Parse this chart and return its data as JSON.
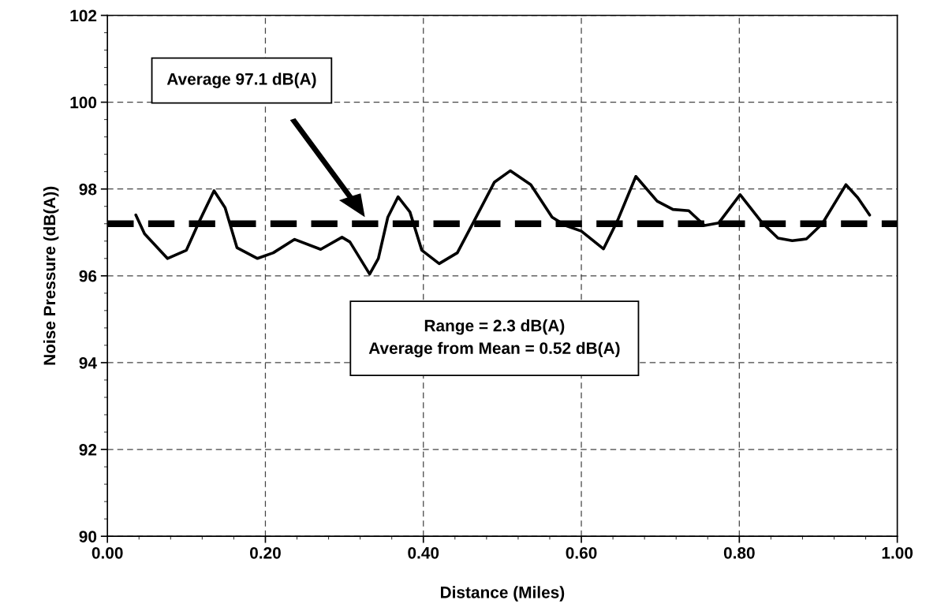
{
  "chart_data": {
    "type": "line",
    "xlabel": "Distance (Miles)",
    "ylabel": "Noise Pressure (dB(A))",
    "xlim": [
      0,
      1
    ],
    "ylim": [
      90,
      102
    ],
    "xticks": [
      {
        "value": 0,
        "label": "0.00"
      },
      {
        "value": 0.2,
        "label": "0.20"
      },
      {
        "value": 0.4,
        "label": "0.40"
      },
      {
        "value": 0.6,
        "label": "0.60"
      },
      {
        "value": 0.8,
        "label": "0.80"
      },
      {
        "value": 1,
        "label": "1.00"
      }
    ],
    "yticks": [
      90,
      92,
      94,
      96,
      98,
      100,
      102
    ],
    "grid": true,
    "line_style": "solid",
    "marker": "none",
    "series": [
      {
        "color": "#000000",
        "x": [
          0.036,
          0.047,
          0.076,
          0.1,
          0.117,
          0.135,
          0.149,
          0.164,
          0.19,
          0.21,
          0.237,
          0.27,
          0.297,
          0.307,
          0.332,
          0.343,
          0.355,
          0.368,
          0.383,
          0.398,
          0.42,
          0.443,
          0.463,
          0.49,
          0.51,
          0.536,
          0.563,
          0.58,
          0.6,
          0.628,
          0.646,
          0.669,
          0.696,
          0.716,
          0.736,
          0.756,
          0.774,
          0.801,
          0.829,
          0.849,
          0.867,
          0.885,
          0.905,
          0.935,
          0.95,
          0.965
        ],
        "values": [
          97.4,
          96.97,
          96.4,
          96.59,
          97.28,
          97.96,
          97.57,
          96.65,
          96.4,
          96.53,
          96.84,
          96.61,
          96.89,
          96.78,
          96.04,
          96.4,
          97.35,
          97.82,
          97.47,
          96.59,
          96.28,
          96.53,
          97.22,
          98.16,
          98.42,
          98.1,
          97.35,
          97.16,
          97.03,
          96.62,
          97.28,
          98.29,
          97.72,
          97.53,
          97.5,
          97.16,
          97.22,
          97.87,
          97.22,
          96.87,
          96.81,
          96.85,
          97.2,
          98.1,
          97.8,
          97.4
        ]
      }
    ],
    "ref_lines": [
      {
        "axis": "y",
        "value": 97.2,
        "color": "#000000",
        "line_style": "dashed"
      }
    ],
    "annotations": [
      "Average 97.1 dB(A)",
      "Range = 2.3 dB(A)\nAverage from Mean = 0.52 dB(A)"
    ]
  }
}
